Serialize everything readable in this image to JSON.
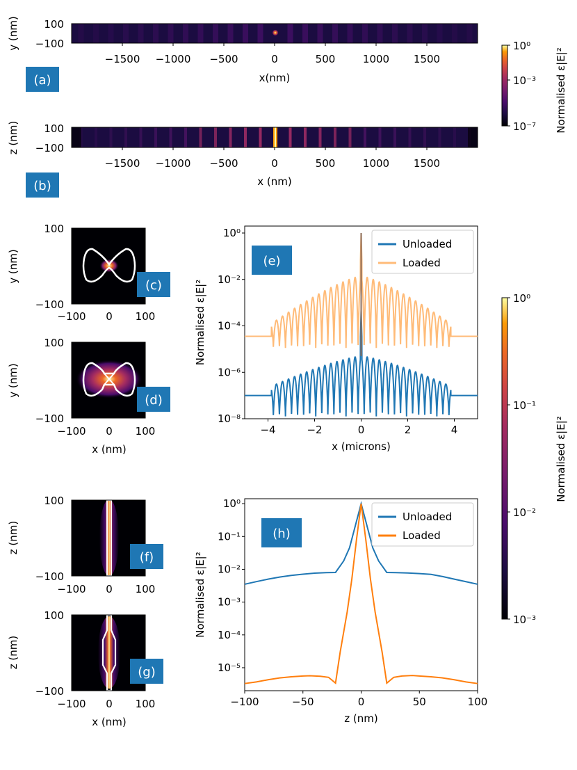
{
  "colors": {
    "unloaded": "#1f77b4",
    "loaded": "#ff7f0e",
    "loaded_light": "#ffbb78",
    "panel_label_bg": "#1f77b4"
  },
  "panels": {
    "a": {
      "label": "(a)",
      "xlabel": "x(nm)",
      "ylabel": "y (nm)",
      "ytick_top": "100",
      "ytick_bottom": "−100",
      "xticks": [
        "−1500",
        "−1000",
        "−500",
        "0",
        "500",
        "1000",
        "1500"
      ]
    },
    "b": {
      "label": "(b)",
      "xlabel": "x (nm)",
      "ylabel": "z (nm)",
      "ytick_top": "100",
      "ytick_bottom": "−100",
      "xticks": [
        "−1500",
        "−1000",
        "−500",
        "0",
        "500",
        "1000",
        "1500"
      ]
    },
    "c": {
      "label": "(c)",
      "ylabel": "y (nm)",
      "xticks": [
        "−100",
        "0",
        "100"
      ],
      "yticks": [
        "100",
        "−100"
      ]
    },
    "d": {
      "label": "(d)",
      "xlabel": "x (nm)",
      "ylabel": "y (nm)",
      "xticks": [
        "−100",
        "0",
        "100"
      ],
      "yticks": [
        "100",
        "−100"
      ]
    },
    "f": {
      "label": "(f)",
      "ylabel": "z (nm)",
      "xticks": [
        "−100",
        "0",
        "100"
      ],
      "yticks": [
        "100",
        "−100"
      ]
    },
    "g": {
      "label": "(g)",
      "xlabel": "x (nm)",
      "ylabel": "z (nm)",
      "xticks": [
        "−100",
        "0",
        "100"
      ],
      "yticks": [
        "100",
        "−100"
      ]
    },
    "e": {
      "label": "(e)"
    },
    "h": {
      "label": "(h)"
    }
  },
  "colorbar_top": {
    "label": "Normalised ε|E|²",
    "ticks": [
      "10⁰",
      "10⁻³",
      "10⁻⁷"
    ],
    "colormap": "inferno"
  },
  "colorbar_right": {
    "label": "Normalised ε|E|²",
    "ticks": [
      "10⁰",
      "10⁻¹",
      "10⁻²",
      "10⁻³"
    ],
    "colormap": "inferno"
  },
  "chart_data": [
    {
      "id": "e",
      "type": "line",
      "title": "",
      "xlabel": "x (microns)",
      "ylabel": "Normalised ε|E|²",
      "xlim": [
        -5,
        5
      ],
      "ylim_log10": [
        -8,
        0.3
      ],
      "yscale": "log",
      "xticks": [
        -4,
        -2,
        0,
        2,
        4
      ],
      "xtick_labels": [
        "−4",
        "−2",
        "0",
        "2",
        "4"
      ],
      "yticks_log10": [
        0,
        -2,
        -4,
        -6,
        -8
      ],
      "ytick_labels": [
        "10⁰",
        "10⁻²",
        "10⁻⁴",
        "10⁻⁶",
        "10⁻⁸"
      ],
      "legend": [
        "Unloaded",
        "Loaded"
      ],
      "legend_position": "top-right",
      "series": [
        {
          "name": "Unloaded",
          "background_log10": -7.0,
          "cavity_half_width": 3.85,
          "envelope_peak_log10": -5.3,
          "envelope_edge_log10": -6.6,
          "oscillation_min_log10": -7.9,
          "oscillation_period": 0.26,
          "peak_x": 0,
          "peak_log10": -3.3
        },
        {
          "name": "Loaded",
          "background_log10": -4.45,
          "cavity_half_width": 3.85,
          "envelope_peak_log10": -1.85,
          "envelope_edge_log10": -3.9,
          "oscillation_min_log10": -4.95,
          "oscillation_period": 0.26,
          "peak_x": 0,
          "peak_log10": 0
        }
      ]
    },
    {
      "id": "h",
      "type": "line",
      "title": "",
      "xlabel": "z (nm)",
      "ylabel": "Normalised ε|E|²",
      "xlim": [
        -100,
        100
      ],
      "ylim_log10": [
        -5.7,
        0.15
      ],
      "yscale": "log",
      "xticks": [
        -100,
        -50,
        0,
        50,
        100
      ],
      "xtick_labels": [
        "−100",
        "−50",
        "0",
        "50",
        "100"
      ],
      "yticks_log10": [
        0,
        -1,
        -2,
        -3,
        -4,
        -5
      ],
      "ytick_labels": [
        "10⁰",
        "10⁻¹",
        "10⁻²",
        "10⁻³",
        "10⁻⁴",
        "10⁻⁵"
      ],
      "legend": [
        "Unloaded",
        "Loaded"
      ],
      "legend_position": "top-right",
      "series": [
        {
          "name": "Unloaded",
          "x": [
            -100,
            -90,
            -80,
            -70,
            -60,
            -50,
            -40,
            -30,
            -22,
            -15,
            -10,
            0,
            10,
            15,
            22,
            30,
            40,
            50,
            60,
            70,
            80,
            90,
            100
          ],
          "y": [
            0.0035,
            0.0042,
            0.005,
            0.0058,
            0.0065,
            0.0071,
            0.0076,
            0.0079,
            0.008,
            0.018,
            0.045,
            1.0,
            0.045,
            0.018,
            0.008,
            0.0079,
            0.0077,
            0.0074,
            0.007,
            0.006,
            0.005,
            0.0042,
            0.0035
          ]
        },
        {
          "name": "Loaded",
          "x": [
            -100,
            -90,
            -80,
            -70,
            -60,
            -50,
            -44,
            -35,
            -28,
            -22,
            -18,
            -12,
            -8,
            -4,
            0,
            4,
            8,
            12,
            18,
            22,
            28,
            35,
            44,
            50,
            60,
            70,
            80,
            90,
            100
          ],
          "y": [
            3.3e-06,
            3.7e-06,
            4.3e-06,
            4.9e-06,
            5.3e-06,
            5.6e-06,
            5.7e-06,
            5.5e-06,
            5.1e-06,
            3.4e-06,
            3e-05,
            0.0005,
            0.005,
            0.08,
            1.0,
            0.08,
            0.005,
            0.0005,
            3e-05,
            3.4e-06,
            5.1e-06,
            5.6e-06,
            5.8e-06,
            5.6e-06,
            5.3e-06,
            4.9e-06,
            4.3e-06,
            3.7e-06,
            3.3e-06
          ]
        }
      ]
    }
  ]
}
